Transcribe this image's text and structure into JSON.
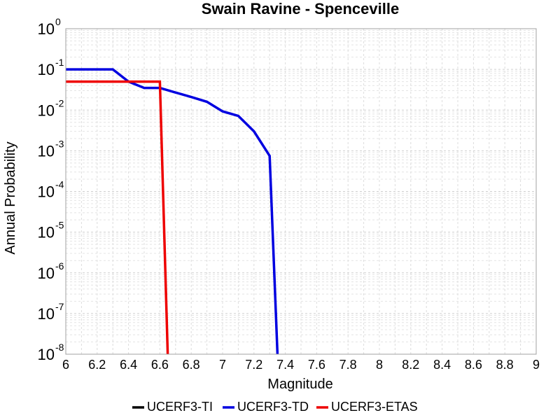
{
  "chart_data": {
    "type": "line",
    "title": "Swain Ravine - Spenceville",
    "xlabel": "Magnitude",
    "ylabel": "Annual Probability",
    "xlim": [
      6,
      9
    ],
    "ylim": [
      1e-08,
      1
    ],
    "yscale": "log",
    "grid": true,
    "legend": "bottom",
    "x_ticks": [
      "6",
      "6.2",
      "6.4",
      "6.6",
      "6.8",
      "7",
      "7.2",
      "7.4",
      "7.6",
      "7.8",
      "8",
      "8.2",
      "8.4",
      "8.6",
      "8.8",
      "9"
    ],
    "y_tick_base": "10",
    "y_tick_exponents": [
      "0",
      "-1",
      "-2",
      "-3",
      "-4",
      "-5",
      "-6",
      "-7",
      "-8"
    ],
    "series": [
      {
        "name": "UCERF3-TI",
        "color": "#000000",
        "x": [],
        "y": []
      },
      {
        "name": "UCERF3-TD",
        "color": "#0000e0",
        "x": [
          6.0,
          6.3,
          6.4,
          6.5,
          6.6,
          6.7,
          6.8,
          6.9,
          7.0,
          7.1,
          7.2,
          7.3,
          7.35
        ],
        "y": [
          0.1,
          0.1,
          0.05,
          0.035,
          0.035,
          0.027,
          0.021,
          0.016,
          0.0093,
          0.0072,
          0.003,
          0.00075,
          1e-08
        ]
      },
      {
        "name": "UCERF3-ETAS",
        "color": "#ee0000",
        "x": [
          6.0,
          6.6,
          6.65
        ],
        "y": [
          0.05,
          0.05,
          1e-08
        ]
      }
    ]
  }
}
